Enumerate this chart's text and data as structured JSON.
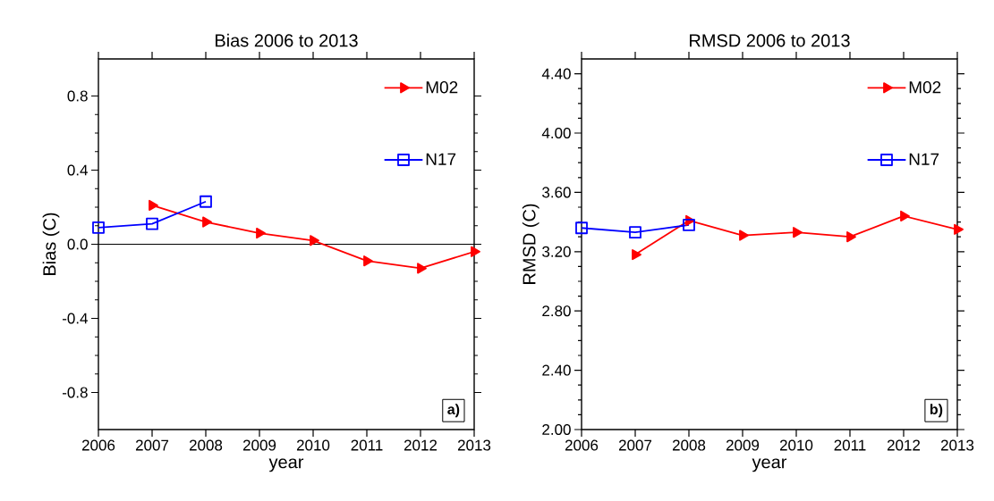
{
  "chart_data": [
    {
      "type": "line",
      "title": "Bias 2006 to 2013",
      "xlabel": "year",
      "ylabel": "Bias (C)",
      "x": [
        2006,
        2007,
        2008,
        2009,
        2010,
        2011,
        2012,
        2013
      ],
      "series": [
        {
          "name": "M02",
          "color": "#ff0000",
          "marker": "triangle",
          "values": [
            null,
            0.21,
            0.12,
            0.06,
            0.02,
            -0.09,
            -0.13,
            -0.04
          ]
        },
        {
          "name": "N17",
          "color": "#0000ff",
          "marker": "square",
          "values": [
            0.09,
            0.11,
            0.23,
            null,
            null,
            null,
            null,
            null
          ]
        }
      ],
      "xlim": [
        2006,
        2013
      ],
      "xticks": [
        2006,
        2007,
        2008,
        2009,
        2010,
        2011,
        2012,
        2013
      ],
      "ylim": [
        -1.0,
        1.0
      ],
      "yticks": [
        -0.8,
        -0.4,
        {
          "value": 0,
          "label": "0.0"
        },
        0.4,
        0.8
      ],
      "ref_lines": [
        {
          "axis": "y",
          "value": 0,
          "color": "#000000"
        }
      ],
      "legend": "top right",
      "grid": false,
      "annotations": [
        "a)"
      ]
    },
    {
      "type": "line",
      "title": "RMSD 2006 to 2013",
      "xlabel": "year",
      "ylabel": "RMSD (C)",
      "x": [
        2006,
        2007,
        2008,
        2009,
        2010,
        2011,
        2012,
        2013
      ],
      "series": [
        {
          "name": "M02",
          "color": "#ff0000",
          "marker": "triangle",
          "values": [
            null,
            3.18,
            3.41,
            3.31,
            3.33,
            3.3,
            3.44,
            3.35
          ]
        },
        {
          "name": "N17",
          "color": "#0000ff",
          "marker": "square",
          "values": [
            3.36,
            3.33,
            3.38,
            null,
            null,
            null,
            null,
            null
          ]
        }
      ],
      "xlim": [
        2006,
        2013
      ],
      "xticks": [
        2006,
        2007,
        2008,
        2009,
        2010,
        2011,
        2012,
        2013
      ],
      "ylim": [
        2.0,
        4.5
      ],
      "yticks": [
        {
          "value": 2.0,
          "label": "2.00"
        },
        {
          "value": 2.4,
          "label": "2.40"
        },
        {
          "value": 2.8,
          "label": "2.80"
        },
        {
          "value": 3.2,
          "label": "3.20"
        },
        {
          "value": 3.6,
          "label": "3.60"
        },
        {
          "value": 4.0,
          "label": "4.00"
        },
        {
          "value": 4.4,
          "label": "4.40"
        }
      ],
      "legend": "top right",
      "grid": false,
      "annotations": [
        "b)"
      ]
    }
  ]
}
